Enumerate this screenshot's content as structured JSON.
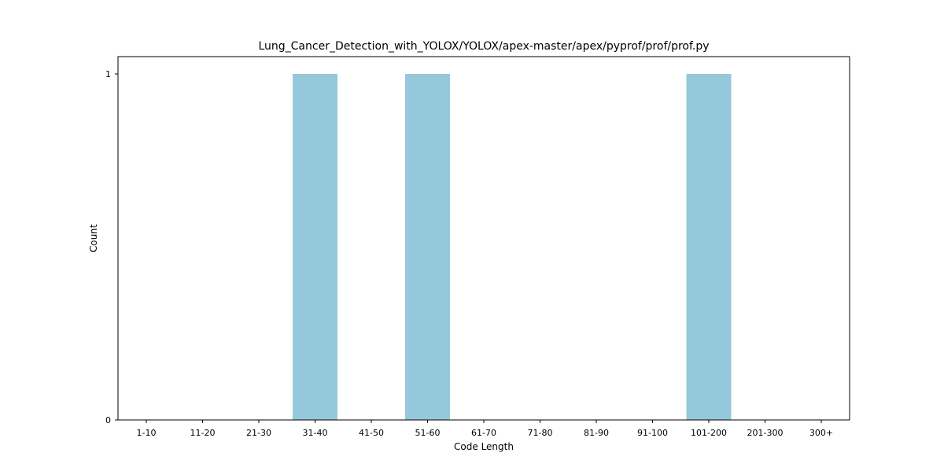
{
  "chart_data": {
    "type": "bar",
    "title": "Lung_Cancer_Detection_with_YOLOX/YOLOX/apex-master/apex/pyprof/prof/prof.py",
    "xlabel": "Code Length",
    "ylabel": "Count",
    "categories": [
      "1-10",
      "11-20",
      "21-30",
      "31-40",
      "41-50",
      "51-60",
      "61-70",
      "71-80",
      "81-90",
      "91-100",
      "101-200",
      "201-300",
      "300+"
    ],
    "values": [
      0,
      0,
      0,
      1,
      0,
      1,
      0,
      0,
      0,
      0,
      1,
      0,
      0
    ],
    "yticks": [
      "0",
      "1"
    ],
    "ylim": [
      0,
      1.05
    ],
    "bar_color": "#96c8dc",
    "grid": false,
    "legend": false
  }
}
